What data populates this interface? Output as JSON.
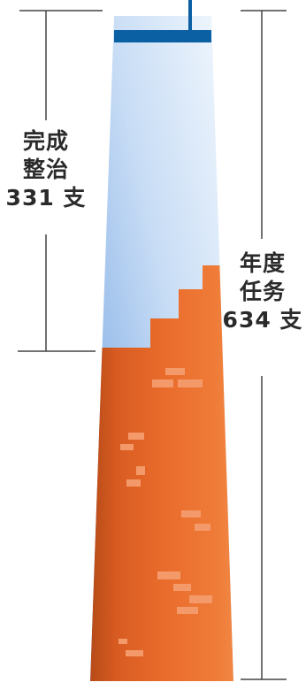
{
  "left_label": {
    "line1": "完成",
    "line2": "整治",
    "line3": "331 支"
  },
  "right_label": {
    "line1": "年度",
    "line2": "任务",
    "line3": "634 支"
  },
  "values": {
    "completed": 331,
    "annual_target": 634
  },
  "colors": {
    "sky_top": "#eaf3fb",
    "sky_bottom": "#6d9ee0",
    "brick_main": "#e7662a",
    "brick_dark": "#b84b18",
    "brick_light": "#f49a6a",
    "top_band": "#0b5fa3",
    "text": "#2a2a2a",
    "guide_line": "#444444"
  }
}
